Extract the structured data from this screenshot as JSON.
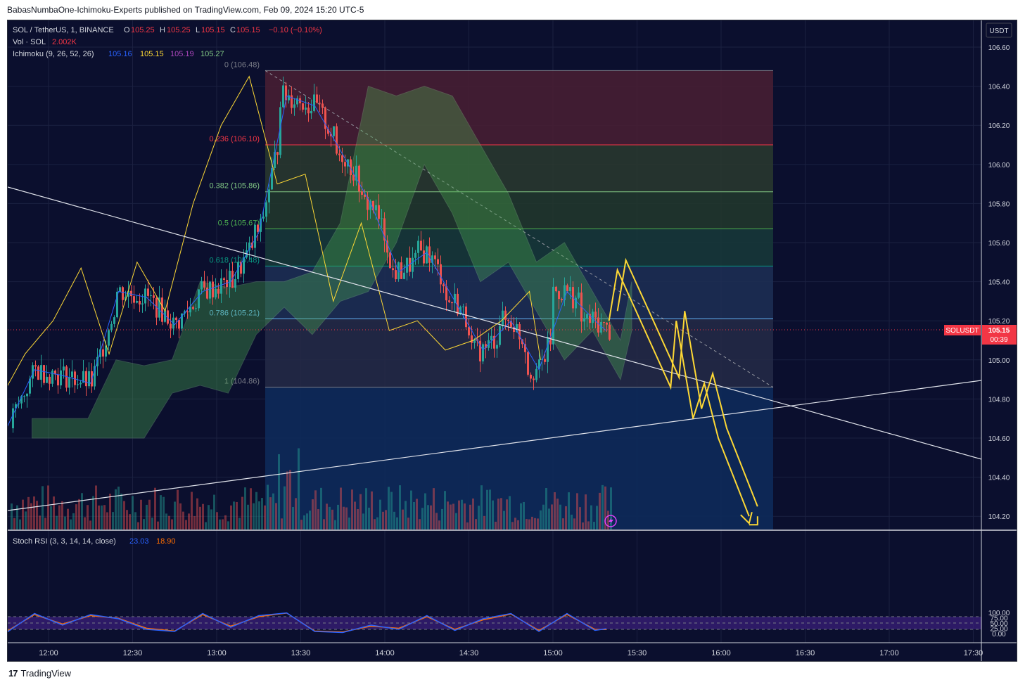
{
  "header": {
    "published": "BabasNumbaOne-Ichimoku-Experts published on TradingView.com, Feb 09, 2024 15:20 UTC-5"
  },
  "legend": {
    "symbol": "SOL / TetherUS, 1, BINANCE",
    "ohlc_o_label": "O",
    "ohlc_o": "105.25",
    "ohlc_h_label": "H",
    "ohlc_h": "105.25",
    "ohlc_l_label": "L",
    "ohlc_l": "105.15",
    "ohlc_c_label": "C",
    "ohlc_c": "105.15",
    "change": "−0.10 (−0.10%)",
    "vol_label": "Vol · SOL",
    "vol_value": "2.002K",
    "ichimoku_label": "Ichimoku (9, 26, 52, 26)",
    "ichimoku_values": [
      "105.16",
      "105.15",
      "105.19",
      "105.27"
    ],
    "stoch_label": "Stoch RSI (3, 3, 14, 14, close)",
    "stoch_k": "23.03",
    "stoch_d": "18.90"
  },
  "price_axis": {
    "currency": "USDT",
    "ticks": [
      "106.60",
      "106.40",
      "106.20",
      "106.00",
      "105.80",
      "105.60",
      "105.40",
      "105.20",
      "105.00",
      "104.80",
      "104.60",
      "104.40",
      "104.20"
    ],
    "last_price_symbol": "SOLUSDT",
    "last_price": "105.15",
    "countdown": "00:39"
  },
  "stoch_axis": {
    "ticks": [
      "100.00",
      "75.00",
      "50.00",
      "25.00",
      "0.00"
    ]
  },
  "time_axis": {
    "ticks": [
      "12:00",
      "12:30",
      "13:00",
      "13:30",
      "14:00",
      "14:30",
      "15:00",
      "15:30",
      "16:00",
      "16:30",
      "17:00",
      "17:30"
    ]
  },
  "fib_levels": [
    {
      "label": "0 (106.48)",
      "price": 106.48,
      "color": "#787b86"
    },
    {
      "label": "0.236 (106.10)",
      "price": 106.1,
      "color": "#f23645"
    },
    {
      "label": "0.382 (105.86)",
      "price": 105.86,
      "color": "#81c784"
    },
    {
      "label": "0.5 (105.67)",
      "price": 105.67,
      "color": "#4caf50"
    },
    {
      "label": "0.618 (105.48)",
      "price": 105.48,
      "color": "#089981"
    },
    {
      "label": "0.786 (105.21)",
      "price": 105.21,
      "color": "#64b5f6"
    },
    {
      "label": "1 (104.86)",
      "price": 104.86,
      "color": "#787b86"
    }
  ],
  "chart_data": {
    "type": "line",
    "title": "",
    "symbol": "SOL / TetherUS, 1, BINANCE",
    "x_range": [
      "11:45",
      "17:35"
    ],
    "ylim": [
      104.14,
      106.68
    ],
    "close_series": {
      "x": [
        "11:45",
        "11:55",
        "12:05",
        "12:15",
        "12:25",
        "12:35",
        "12:45",
        "12:55",
        "13:05",
        "13:15",
        "13:25",
        "13:35",
        "13:45",
        "13:55",
        "14:05",
        "14:15",
        "14:25",
        "14:35",
        "14:45",
        "14:55",
        "15:05",
        "15:15",
        "15:19"
      ],
      "y": [
        104.65,
        104.95,
        104.92,
        104.88,
        105.35,
        105.32,
        105.18,
        105.35,
        105.4,
        105.65,
        106.35,
        106.3,
        106.05,
        105.8,
        105.45,
        105.55,
        105.3,
        105.05,
        105.2,
        104.95,
        105.35,
        105.2,
        105.15
      ]
    },
    "projection": {
      "x": [
        "15:20",
        "15:23",
        "15:42",
        "15:44",
        "15:50",
        "15:54",
        "15:59",
        "16:10"
      ],
      "y": [
        105.2,
        105.46,
        104.86,
        105.2,
        104.7,
        104.88,
        104.6,
        104.2
      ]
    },
    "stoch_rsi": {
      "x": [
        "11:45",
        "11:55",
        "12:05",
        "12:15",
        "12:25",
        "12:35",
        "12:45",
        "12:55",
        "13:05",
        "13:15",
        "13:25",
        "13:35",
        "13:45",
        "13:55",
        "14:05",
        "14:15",
        "14:25",
        "14:35",
        "14:45",
        "14:55",
        "15:05",
        "15:15",
        "15:19"
      ],
      "k": [
        5,
        95,
        40,
        90,
        70,
        20,
        10,
        95,
        30,
        85,
        98,
        10,
        5,
        40,
        20,
        85,
        15,
        70,
        95,
        10,
        95,
        15,
        23
      ],
      "d": [
        10,
        90,
        45,
        85,
        72,
        25,
        12,
        90,
        35,
        80,
        97,
        12,
        8,
        35,
        25,
        80,
        20,
        65,
        92,
        15,
        90,
        20,
        19
      ],
      "ylim": [
        0,
        100
      ],
      "bands": [
        20,
        50,
        80
      ]
    }
  },
  "footer": {
    "brand": "TradingView"
  }
}
